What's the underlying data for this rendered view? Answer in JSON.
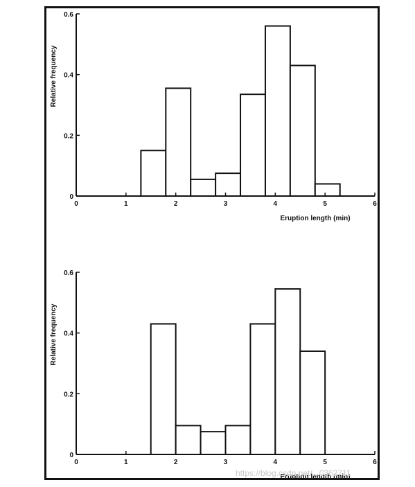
{
  "figure": {
    "watermark": "https://blog.csdn.net/...0362711"
  },
  "chart_data": [
    {
      "type": "bar",
      "histogram": true,
      "xlabel": "Eruption length (min)",
      "ylabel": "Relative frequency",
      "xlim": [
        0,
        6
      ],
      "ylim": [
        0,
        0.6
      ],
      "xticks": [
        "0",
        "1",
        "2",
        "3",
        "4",
        "5",
        "6"
      ],
      "yticks": [
        "0",
        "0.2",
        "0.4",
        "0.6"
      ],
      "bin_edges": [
        1.3,
        1.8,
        2.3,
        2.8,
        3.3,
        3.8,
        4.3,
        4.8,
        5.3
      ],
      "values": [
        0.15,
        0.355,
        0.055,
        0.075,
        0.335,
        0.56,
        0.43,
        0.04
      ],
      "grid": false,
      "colors": {
        "bar_fill": "#ffffff",
        "bar_stroke": "#111111",
        "axis": "#111111"
      }
    },
    {
      "type": "bar",
      "histogram": true,
      "xlabel": "Eruption length (min)",
      "ylabel": "Relative frequency",
      "xlim": [
        0,
        6
      ],
      "ylim": [
        0,
        0.6
      ],
      "xticks": [
        "0",
        "1",
        "2",
        "3",
        "4",
        "5",
        "6"
      ],
      "yticks": [
        "0",
        "0.2",
        "0.4",
        "0.6"
      ],
      "bin_edges": [
        1.5,
        2.0,
        2.5,
        3.0,
        3.5,
        4.0,
        4.5,
        5.0
      ],
      "values": [
        0.43,
        0.095,
        0.075,
        0.095,
        0.43,
        0.545,
        0.34
      ],
      "grid": false,
      "colors": {
        "bar_fill": "#ffffff",
        "bar_stroke": "#111111",
        "axis": "#111111"
      }
    }
  ]
}
